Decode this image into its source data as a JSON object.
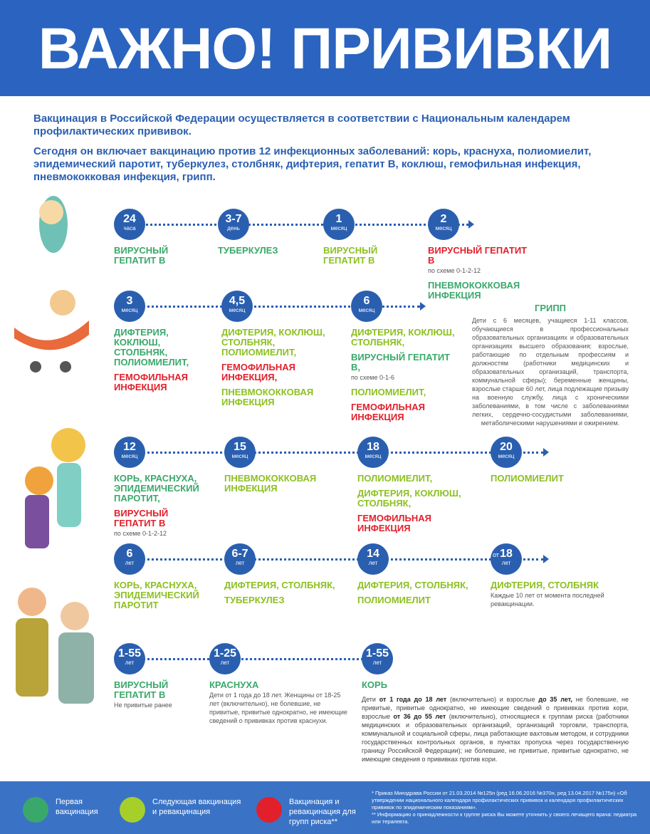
{
  "header": {
    "title": "ВАЖНО! ПРИВИВКИ"
  },
  "intro": [
    "Вакцинация в Российской Федерации  осуществляется в соответствии с Национальным календарем профилактических прививок.",
    "Сегодня он включает вакцинацию против 12 инфекционных заболеваний: корь, краснуха, полиомиелит, эпидемический паротит, туберкулез, столбняк, дифтерия, гепатит В, коклюш, гемофильная инфекция, пневмококковая инфекция, грипп."
  ],
  "rows": [
    {
      "milestones": [
        {
          "value": "24",
          "unit": "часа",
          "items": [
            {
              "text": "ВИРУСНЫЙ ГЕПАТИТ В",
              "color": "#3aa86b"
            }
          ]
        },
        {
          "value": "3-7",
          "unit": "день",
          "items": [
            {
              "text": "ТУБЕРКУЛЕЗ",
              "color": "#3aa86b"
            }
          ]
        },
        {
          "value": "1",
          "unit": "месяц",
          "items": [
            {
              "text": "ВИРУСНЫЙ ГЕПАТИТ В",
              "color": "#8cc021"
            }
          ]
        },
        {
          "value": "2",
          "unit": "месяц",
          "items": [
            {
              "text": "ВИРУСНЫЙ ГЕПАТИТ В",
              "color": "#e2202c"
            },
            {
              "note": "по схеме 0-1-2-12"
            },
            {
              "text": "ПНЕВМОКОККОВАЯ ИНФЕКЦИЯ",
              "color": "#3aa86b"
            }
          ]
        }
      ]
    },
    {
      "milestones": [
        {
          "value": "3",
          "unit": "месяц",
          "items": [
            {
              "text": "ДИФТЕРИЯ, КОКЛЮШ, СТОЛБНЯК, ПОЛИОМИЕЛИТ,",
              "color": "#3aa86b"
            },
            {
              "text": "ГЕМОФИЛЬНАЯ ИНФЕКЦИЯ",
              "color": "#e2202c"
            }
          ]
        },
        {
          "value": "4,5",
          "unit": "месяц",
          "items": [
            {
              "text": "ДИФТЕРИЯ, КОКЛЮШ, СТОЛБНЯК, ПОЛИОМИЕЛИТ,",
              "color": "#8cc021"
            },
            {
              "text": "ГЕМОФИЛЬНАЯ ИНФЕКЦИЯ,",
              "color": "#e2202c"
            },
            {
              "text": "ПНЕВМОКОККОВАЯ ИНФЕКЦИЯ",
              "color": "#8cc021"
            }
          ]
        },
        {
          "value": "6",
          "unit": "месяц",
          "items": [
            {
              "text": "ДИФТЕРИЯ, КОКЛЮШ, СТОЛБНЯК,",
              "color": "#8cc021"
            },
            {
              "text": "ВИРУСНЫЙ ГЕПАТИТ В,",
              "color": "#3aa86b"
            },
            {
              "note": "по схеме 0-1-6"
            },
            {
              "text": "ПОЛИОМИЕЛИТ,",
              "color": "#8cc021"
            },
            {
              "text": "ГЕМОФИЛЬНАЯ ИНФЕКЦИЯ",
              "color": "#e2202c"
            }
          ]
        }
      ]
    },
    {
      "milestones": [
        {
          "value": "12",
          "unit": "месяц",
          "items": [
            {
              "text": "КОРЬ, КРАСНУХА, ЭПИДЕМИЧЕСКИЙ ПАРОТИТ,",
              "color": "#3aa86b"
            },
            {
              "text": "ВИРУСНЫЙ ГЕПАТИТ В",
              "color": "#e2202c"
            },
            {
              "note": "по схеме 0-1-2-12"
            }
          ]
        },
        {
          "value": "15",
          "unit": "месяц",
          "items": [
            {
              "text": "ПНЕВМОКОККОВАЯ ИНФЕКЦИЯ",
              "color": "#8cc021"
            }
          ]
        },
        {
          "value": "18",
          "unit": "месяц",
          "items": [
            {
              "text": "ПОЛИОМИЕЛИТ,",
              "color": "#8cc021"
            },
            {
              "text": "ДИФТЕРИЯ, КОКЛЮШ, СТОЛБНЯК,",
              "color": "#8cc021"
            },
            {
              "text": "ГЕМОФИЛЬНАЯ ИНФЕКЦИЯ",
              "color": "#e2202c"
            }
          ]
        },
        {
          "value": "20",
          "unit": "месяц",
          "items": [
            {
              "text": "ПОЛИОМИЕЛИТ",
              "color": "#8cc021"
            }
          ]
        }
      ]
    },
    {
      "milestones": [
        {
          "value": "6",
          "unit": "лет",
          "items": [
            {
              "text": "КОРЬ, КРАСНУХА, ЭПИДЕМИЧЕСКИЙ ПАРОТИТ",
              "color": "#8cc021"
            }
          ]
        },
        {
          "value": "6-7",
          "unit": "лет",
          "items": [
            {
              "text": "ДИФТЕРИЯ, СТОЛБНЯК,",
              "color": "#8cc021"
            },
            {
              "text": "ТУБЕРКУЛЕЗ",
              "color": "#8cc021"
            }
          ]
        },
        {
          "value": "14",
          "unit": "лет",
          "items": [
            {
              "text": "ДИФТЕРИЯ, СТОЛБНЯК,",
              "color": "#8cc021"
            },
            {
              "text": "ПОЛИОМИЕЛИТ",
              "color": "#8cc021"
            }
          ]
        },
        {
          "prefix": "от",
          "value": "18",
          "unit": "лет",
          "items": [
            {
              "text": "ДИФТЕРИЯ, СТОЛБНЯК",
              "color": "#8cc021"
            },
            {
              "note": "Каждые 10 лет от момента последней ревакцинации."
            }
          ]
        }
      ]
    },
    {
      "milestones": [
        {
          "value": "1-55",
          "unit": "лет",
          "items": [
            {
              "text": "ВИРУСНЫЙ ГЕПАТИТ В",
              "color": "#3aa86b"
            },
            {
              "note": "Не привитые ранее"
            }
          ]
        },
        {
          "value": "1-25",
          "unit": "лет",
          "items": [
            {
              "text": "КРАСНУХА",
              "color": "#3aa86b"
            },
            {
              "note": "Дети от 1 года до 18 лет. Женщины от 18-25 лет (включительно), не болевшие, не привитые, привитые однократно, не имеющие сведений о прививках против краснухи."
            }
          ]
        },
        {
          "value": "1-55",
          "unit": "лет",
          "items": [
            {
              "text": "КОРЬ",
              "color": "#3aa86b"
            },
            {
              "parts": [
                {
                  "text": "Дети "
                },
                {
                  "text": "от 1 года до 18 лет",
                  "bold": true
                },
                {
                  "text": " (включительно) и взрослые "
                },
                {
                  "text": "до 35 лет,",
                  "bold": true
                },
                {
                  "text": " не болевшие, не привитые, привитые однократно, не имеющие сведений о прививках против кори, взрослые "
                },
                {
                  "text": "от 36 до 55 лет",
                  "bold": true
                },
                {
                  "text": " (включительно), относящиеся к группам риска (работники медицинских и образовательных организаций, организаций торговли, транспорта, коммунальной и социальной сферы, лица работающие вахтовым методом, и сотрудники государственных контрольных органов, в пунктах пропуска через государственную границу Российской Федерации); не болевшие, не привитые, привитые однократно, не имеющие сведения о прививках против кори."
                }
              ]
            }
          ]
        }
      ]
    }
  ],
  "flu": {
    "title": "ГРИПП",
    "text": "Дети с 6 месяцев, учащиеся 1-11 классов, обучающиеся в профессиональных образовательных организациях и образовательных организациях высшего образования; взрослые, работающие по отдельным профессиям и должностям (работники медицинских и образовательных организаций, транспорта, коммунальной сферы); беременные женщины, взрослые старше 60 лет, лица подлежащие призыву на военную службу, лица с хроническими заболеваниями, в том числе с заболеваниями легких, сердечно-сосудистыми заболеваниями, метаболическими нарушениями и ожирением."
  },
  "legend": [
    {
      "label": "Первая вакцинация",
      "color": "#3aa86b"
    },
    {
      "label": "Следующая вакцинация и ревакцинация",
      "color": "#a6cf2a"
    },
    {
      "label": "Вакцинация и ревакцинация для групп риска**",
      "color": "#e2202c"
    }
  ],
  "footnotes": [
    "* Приказ Минздрава России от 21.03.2014 №125н (ред 16.06.2016 №370н, ред 13.04.2017 №175н) «Об утверждении национального календаря профилактических прививок и календаря профилактических прививок по эпидемическим показаниям».",
    "** Информацию о принадлежности к группе риска Вы можете уточнить у своего лечащего врача: педиатра или терапевта."
  ]
}
